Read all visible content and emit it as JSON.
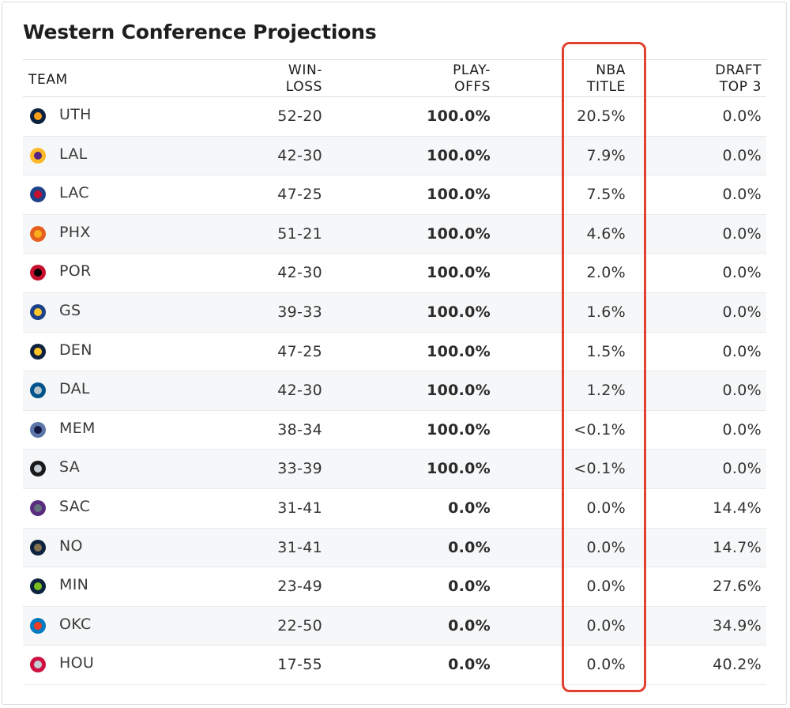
{
  "title": "Western Conference Projections",
  "columns": {
    "team": "TEAM",
    "win_loss": [
      "WIN-",
      "LOSS"
    ],
    "playoffs": [
      "PLAY-",
      "OFFS"
    ],
    "nba_title": [
      "NBA",
      "TITLE"
    ],
    "draft_top3": [
      "DRAFT",
      "TOP 3"
    ]
  },
  "highlight_color": "#e2412f",
  "rows": [
    {
      "team": "UTH",
      "logo": "jazz-logo",
      "color": "#0b2240",
      "accent": "#f9a01b",
      "win_loss": "52-20",
      "playoffs": "100.0%",
      "nba_title": "20.5%",
      "draft_top3": "0.0%"
    },
    {
      "team": "LAL",
      "logo": "lakers-logo",
      "color": "#fdb927",
      "accent": "#552583",
      "win_loss": "42-30",
      "playoffs": "100.0%",
      "nba_title": "7.9%",
      "draft_top3": "0.0%"
    },
    {
      "team": "LAC",
      "logo": "clippers-logo",
      "color": "#1d428a",
      "accent": "#c8102e",
      "win_loss": "47-25",
      "playoffs": "100.0%",
      "nba_title": "7.5%",
      "draft_top3": "0.0%"
    },
    {
      "team": "PHX",
      "logo": "suns-logo",
      "color": "#e56020",
      "accent": "#f9ad1b",
      "win_loss": "51-21",
      "playoffs": "100.0%",
      "nba_title": "4.6%",
      "draft_top3": "0.0%"
    },
    {
      "team": "POR",
      "logo": "blazers-logo",
      "color": "#c8102e",
      "accent": "#000000",
      "win_loss": "42-30",
      "playoffs": "100.0%",
      "nba_title": "2.0%",
      "draft_top3": "0.0%"
    },
    {
      "team": "GS",
      "logo": "warriors-logo",
      "color": "#1d428a",
      "accent": "#ffc72c",
      "win_loss": "39-33",
      "playoffs": "100.0%",
      "nba_title": "1.6%",
      "draft_top3": "0.0%"
    },
    {
      "team": "DEN",
      "logo": "nuggets-logo",
      "color": "#0e2240",
      "accent": "#fec524",
      "win_loss": "47-25",
      "playoffs": "100.0%",
      "nba_title": "1.5%",
      "draft_top3": "0.0%"
    },
    {
      "team": "DAL",
      "logo": "mavericks-logo",
      "color": "#00538c",
      "accent": "#b8c4ca",
      "win_loss": "42-30",
      "playoffs": "100.0%",
      "nba_title": "1.2%",
      "draft_top3": "0.0%"
    },
    {
      "team": "MEM",
      "logo": "grizzlies-logo",
      "color": "#5d76a9",
      "accent": "#12173f",
      "win_loss": "38-34",
      "playoffs": "100.0%",
      "nba_title": "<0.1%",
      "draft_top3": "0.0%"
    },
    {
      "team": "SA",
      "logo": "spurs-logo",
      "color": "#1a1a1a",
      "accent": "#c4ced4",
      "win_loss": "33-39",
      "playoffs": "100.0%",
      "nba_title": "<0.1%",
      "draft_top3": "0.0%"
    },
    {
      "team": "SAC",
      "logo": "kings-logo",
      "color": "#5a2d81",
      "accent": "#63727a",
      "win_loss": "31-41",
      "playoffs": "0.0%",
      "nba_title": "0.0%",
      "draft_top3": "14.4%"
    },
    {
      "team": "NO",
      "logo": "pelicans-logo",
      "color": "#0c2340",
      "accent": "#85714d",
      "win_loss": "31-41",
      "playoffs": "0.0%",
      "nba_title": "0.0%",
      "draft_top3": "14.7%"
    },
    {
      "team": "MIN",
      "logo": "timberwolves-logo",
      "color": "#0c2340",
      "accent": "#78be20",
      "win_loss": "23-49",
      "playoffs": "0.0%",
      "nba_title": "0.0%",
      "draft_top3": "27.6%"
    },
    {
      "team": "OKC",
      "logo": "thunder-logo",
      "color": "#007ac1",
      "accent": "#ef3b24",
      "win_loss": "22-50",
      "playoffs": "0.0%",
      "nba_title": "0.0%",
      "draft_top3": "34.9%"
    },
    {
      "team": "HOU",
      "logo": "rockets-logo",
      "color": "#ce1141",
      "accent": "#c4ced4",
      "win_loss": "17-55",
      "playoffs": "0.0%",
      "nba_title": "0.0%",
      "draft_top3": "40.2%"
    }
  ]
}
